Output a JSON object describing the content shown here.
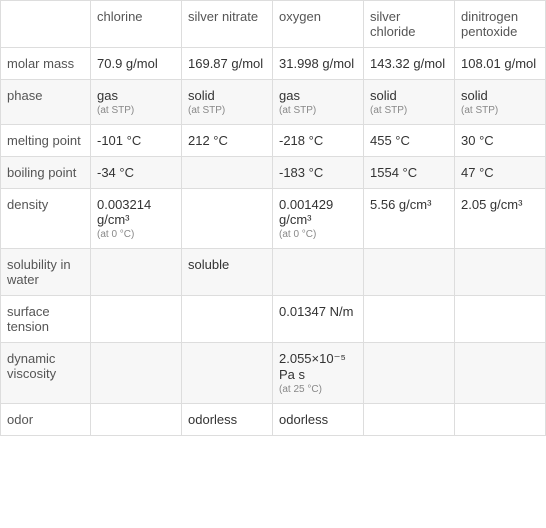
{
  "table": {
    "columns": [
      "",
      "chlorine",
      "silver nitrate",
      "oxygen",
      "silver chloride",
      "dinitrogen pentoxide"
    ],
    "rows": [
      {
        "label": "molar mass",
        "cells": [
          {
            "value": "70.9 g/mol",
            "note": ""
          },
          {
            "value": "169.87 g/mol",
            "note": ""
          },
          {
            "value": "31.998 g/mol",
            "note": ""
          },
          {
            "value": "143.32 g/mol",
            "note": ""
          },
          {
            "value": "108.01 g/mol",
            "note": ""
          }
        ]
      },
      {
        "label": "phase",
        "cells": [
          {
            "value": "gas",
            "note": "(at STP)"
          },
          {
            "value": "solid",
            "note": "(at STP)"
          },
          {
            "value": "gas",
            "note": "(at STP)"
          },
          {
            "value": "solid",
            "note": "(at STP)"
          },
          {
            "value": "solid",
            "note": "(at STP)"
          }
        ]
      },
      {
        "label": "melting point",
        "cells": [
          {
            "value": "-101 °C",
            "note": ""
          },
          {
            "value": "212 °C",
            "note": ""
          },
          {
            "value": "-218 °C",
            "note": ""
          },
          {
            "value": "455 °C",
            "note": ""
          },
          {
            "value": "30 °C",
            "note": ""
          }
        ]
      },
      {
        "label": "boiling point",
        "cells": [
          {
            "value": "-34 °C",
            "note": ""
          },
          {
            "value": "",
            "note": ""
          },
          {
            "value": "-183 °C",
            "note": ""
          },
          {
            "value": "1554 °C",
            "note": ""
          },
          {
            "value": "47 °C",
            "note": ""
          }
        ]
      },
      {
        "label": "density",
        "cells": [
          {
            "value": "0.003214 g/cm³",
            "note": "(at 0 °C)"
          },
          {
            "value": "",
            "note": ""
          },
          {
            "value": "0.001429 g/cm³",
            "note": "(at 0 °C)"
          },
          {
            "value": "5.56 g/cm³",
            "note": ""
          },
          {
            "value": "2.05 g/cm³",
            "note": ""
          }
        ]
      },
      {
        "label": "solubility in water",
        "cells": [
          {
            "value": "",
            "note": ""
          },
          {
            "value": "soluble",
            "note": ""
          },
          {
            "value": "",
            "note": ""
          },
          {
            "value": "",
            "note": ""
          },
          {
            "value": "",
            "note": ""
          }
        ]
      },
      {
        "label": "surface tension",
        "cells": [
          {
            "value": "",
            "note": ""
          },
          {
            "value": "",
            "note": ""
          },
          {
            "value": "0.01347 N/m",
            "note": ""
          },
          {
            "value": "",
            "note": ""
          },
          {
            "value": "",
            "note": ""
          }
        ]
      },
      {
        "label": "dynamic viscosity",
        "cells": [
          {
            "value": "",
            "note": ""
          },
          {
            "value": "",
            "note": ""
          },
          {
            "value": "2.055×10⁻⁵ Pa s",
            "note": "(at 25 °C)"
          },
          {
            "value": "",
            "note": ""
          },
          {
            "value": "",
            "note": ""
          }
        ]
      },
      {
        "label": "odor",
        "cells": [
          {
            "value": "",
            "note": ""
          },
          {
            "value": "odorless",
            "note": ""
          },
          {
            "value": "odorless",
            "note": ""
          },
          {
            "value": "",
            "note": ""
          },
          {
            "value": "",
            "note": ""
          }
        ]
      }
    ],
    "styling": {
      "border_color": "#dddddd",
      "even_row_bg": "#f7f7f7",
      "odd_row_bg": "#ffffff",
      "text_color": "#333333",
      "note_color": "#888888",
      "font_size": 13,
      "note_font_size": 10
    }
  }
}
